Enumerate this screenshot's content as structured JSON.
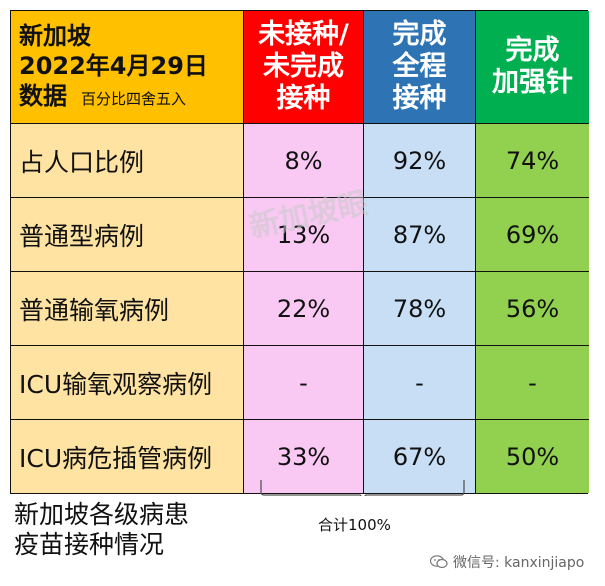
{
  "header": {
    "title_line1": "新加坡",
    "title_line2": "2022年4月29日",
    "title_line3": "数据",
    "rounding_note": "百分比四舍五入",
    "col_unvaccinated_line1": "未接种/",
    "col_unvaccinated_line2": "未完成",
    "col_unvaccinated_line3": "接种",
    "col_full_line1": "完成",
    "col_full_line2": "全程",
    "col_full_line3": "接种",
    "col_booster_line1": "完成",
    "col_booster_line2": "加强针"
  },
  "rows": [
    {
      "label": "占人口比例",
      "unvaccinated": "8%",
      "full": "92%",
      "booster": "74%"
    },
    {
      "label": "普通型病例",
      "unvaccinated": "13%",
      "full": "87%",
      "booster": "69%"
    },
    {
      "label": "普通输氧病例",
      "unvaccinated": "22%",
      "full": "78%",
      "booster": "56%"
    },
    {
      "label": "ICU输氧观察病例",
      "unvaccinated": "-",
      "full": "-",
      "booster": "-"
    },
    {
      "label": "ICU病危插管病例",
      "unvaccinated": "33%",
      "full": "67%",
      "booster": "50%"
    }
  ],
  "caption_line1": "新加坡各级病患",
  "caption_line2": "疫苗接种情况",
  "sum_label": "合计100%",
  "watermark_text": "新加坡眼",
  "wechat_text": "微信号: kanxinjiapo",
  "colors": {
    "header_label_bg": "#ffc000",
    "header_unvaccinated_bg": "#ff0000",
    "header_full_bg": "#2e74b5",
    "header_booster_bg": "#00b050",
    "label_bg": "#ffe3a2",
    "unvaccinated_bg": "#f9c9f3",
    "full_bg": "#c7def4",
    "booster_bg": "#92d050"
  }
}
